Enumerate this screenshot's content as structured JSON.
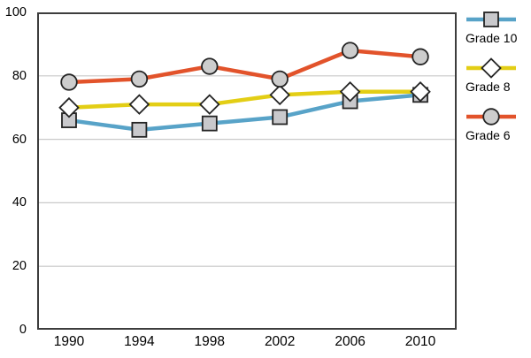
{
  "chart_data": {
    "type": "line",
    "categories": [
      "1990",
      "1994",
      "1998",
      "2002",
      "2006",
      "2010"
    ],
    "series": [
      {
        "name": "Grade 10",
        "values": [
          66,
          63,
          65,
          67,
          72,
          74
        ],
        "line_color": "#58A3C8",
        "marker": "square",
        "marker_fill": "#C9C9CC"
      },
      {
        "name": "Grade 8",
        "values": [
          70,
          71,
          71,
          74,
          75,
          75
        ],
        "line_color": "#E3CE15",
        "marker": "diamond",
        "marker_fill": "#FFFFFF"
      },
      {
        "name": "Grade 6",
        "values": [
          78,
          79,
          83,
          79,
          88,
          86
        ],
        "line_color": "#E2532B",
        "marker": "circle",
        "marker_fill": "#CDCDCD"
      }
    ],
    "ylim": [
      0,
      100
    ],
    "yticks": [
      0,
      20,
      40,
      60,
      80,
      100
    ],
    "grid": true,
    "gridline_color": "#C9C9C9",
    "frame_color": "#3D3D3D",
    "marker_stroke": "#242424",
    "legend_position": "right",
    "legend": [
      "Grade 10",
      "Grade 8",
      "Grade 6"
    ]
  }
}
